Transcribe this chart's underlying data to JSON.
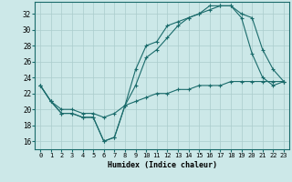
{
  "title": "",
  "xlabel": "Humidex (Indice chaleur)",
  "bg_color": "#cce8e8",
  "line_color": "#1a6b6b",
  "grid_color": "#aacccc",
  "ylim": [
    15.0,
    33.5
  ],
  "xlim": [
    -0.5,
    23.5
  ],
  "yticks": [
    16,
    18,
    20,
    22,
    24,
    26,
    28,
    30,
    32
  ],
  "xticks": [
    0,
    1,
    2,
    3,
    4,
    5,
    6,
    7,
    8,
    9,
    10,
    11,
    12,
    13,
    14,
    15,
    16,
    17,
    18,
    19,
    20,
    21,
    22,
    23
  ],
  "line1_x": [
    0,
    1,
    2,
    3,
    4,
    5,
    6,
    7,
    8,
    9,
    10,
    11,
    12,
    13,
    14,
    15,
    16,
    17,
    18,
    19,
    20,
    21,
    22,
    23
  ],
  "line1_y": [
    23.0,
    21.0,
    19.5,
    19.5,
    19.0,
    19.0,
    16.0,
    16.5,
    20.5,
    25.0,
    28.0,
    28.5,
    30.5,
    31.0,
    31.5,
    32.0,
    32.5,
    33.0,
    33.0,
    32.0,
    31.5,
    27.5,
    25.0,
    23.5
  ],
  "line2_x": [
    0,
    1,
    2,
    3,
    4,
    5,
    6,
    7,
    8,
    9,
    10,
    11,
    12,
    13,
    14,
    15,
    16,
    17,
    18,
    19,
    20,
    21,
    22,
    23
  ],
  "line2_y": [
    23.0,
    21.0,
    19.5,
    19.5,
    19.0,
    19.0,
    16.0,
    16.5,
    20.5,
    23.0,
    26.5,
    27.5,
    29.0,
    30.5,
    31.5,
    32.0,
    33.0,
    33.0,
    33.0,
    31.5,
    27.0,
    24.0,
    23.0,
    23.5
  ],
  "line3_x": [
    0,
    1,
    2,
    3,
    4,
    5,
    6,
    7,
    8,
    9,
    10,
    11,
    12,
    13,
    14,
    15,
    16,
    17,
    18,
    19,
    20,
    21,
    22,
    23
  ],
  "line3_y": [
    23.0,
    21.0,
    20.0,
    20.0,
    19.5,
    19.5,
    19.0,
    19.5,
    20.5,
    21.0,
    21.5,
    22.0,
    22.0,
    22.5,
    22.5,
    23.0,
    23.0,
    23.0,
    23.5,
    23.5,
    23.5,
    23.5,
    23.5,
    23.5
  ]
}
